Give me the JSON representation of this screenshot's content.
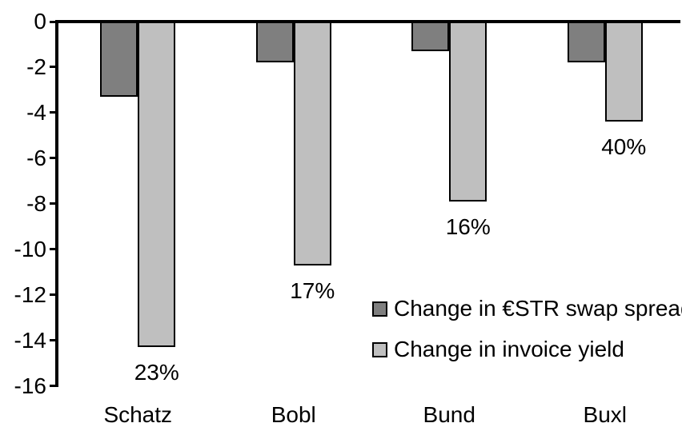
{
  "chart_data": {
    "type": "bar",
    "title": "",
    "categories": [
      "Schatz",
      "Bobl",
      "Bund",
      "Buxl"
    ],
    "series": [
      {
        "name": "Change in €STR swap spread",
        "color": "#7f7f7f",
        "values": [
          -3.3,
          -1.8,
          -1.3,
          -1.8
        ]
      },
      {
        "name": "Change in invoice yield",
        "color": "#bfbfbf",
        "values": [
          -14.3,
          -10.7,
          -7.9,
          -4.4
        ],
        "bar_labels": [
          "23%",
          "17%",
          "16%",
          "40%"
        ]
      }
    ],
    "yticks": [
      0,
      -2,
      -4,
      -6,
      -8,
      -10,
      -12,
      -14,
      -16
    ],
    "ylim": [
      -16,
      0
    ],
    "grid": false,
    "legend_position": "inside-right",
    "axis_color": "#000000",
    "background_color": "#ffffff"
  }
}
